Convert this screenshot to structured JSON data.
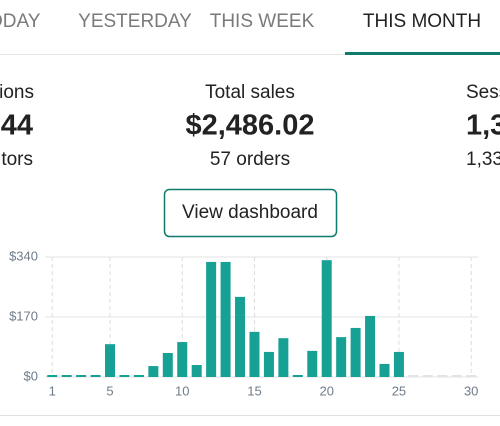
{
  "tabs": [
    "ODAY",
    "YESTERDAY",
    "THIS WEEK",
    "THIS MONTH"
  ],
  "stats": {
    "left": {
      "label": "ions",
      "value": "44",
      "sub": "tors"
    },
    "center": {
      "label": "Total sales",
      "value": "$2,486.02",
      "sub": "57 orders"
    },
    "right": {
      "label": "Sess",
      "value": "1,3",
      "sub": "1,33"
    }
  },
  "button": "View dashboard",
  "chart_data": {
    "type": "bar",
    "x": [
      1,
      2,
      3,
      4,
      5,
      6,
      7,
      8,
      9,
      10,
      11,
      12,
      13,
      14,
      15,
      16,
      17,
      18,
      19,
      20,
      21,
      22,
      23,
      24,
      25,
      26,
      27,
      28,
      29,
      30
    ],
    "values": [
      0,
      0,
      0,
      0,
      93,
      0,
      0,
      31,
      68,
      99,
      34,
      326,
      326,
      227,
      128,
      71,
      110,
      0,
      74,
      331,
      113,
      139,
      173,
      37,
      71,
      null,
      null,
      null,
      null,
      null
    ],
    "color": "#17a195",
    "xlim": [
      0.5,
      30.5
    ],
    "xticks": [
      1,
      5,
      10,
      15,
      20,
      25,
      30
    ],
    "ylim": [
      0,
      340
    ],
    "yticks": [
      {
        "value": 0,
        "label": "$0"
      },
      {
        "value": 170,
        "label": "$170"
      },
      {
        "value": 340,
        "label": "$340"
      }
    ],
    "grid": true
  }
}
